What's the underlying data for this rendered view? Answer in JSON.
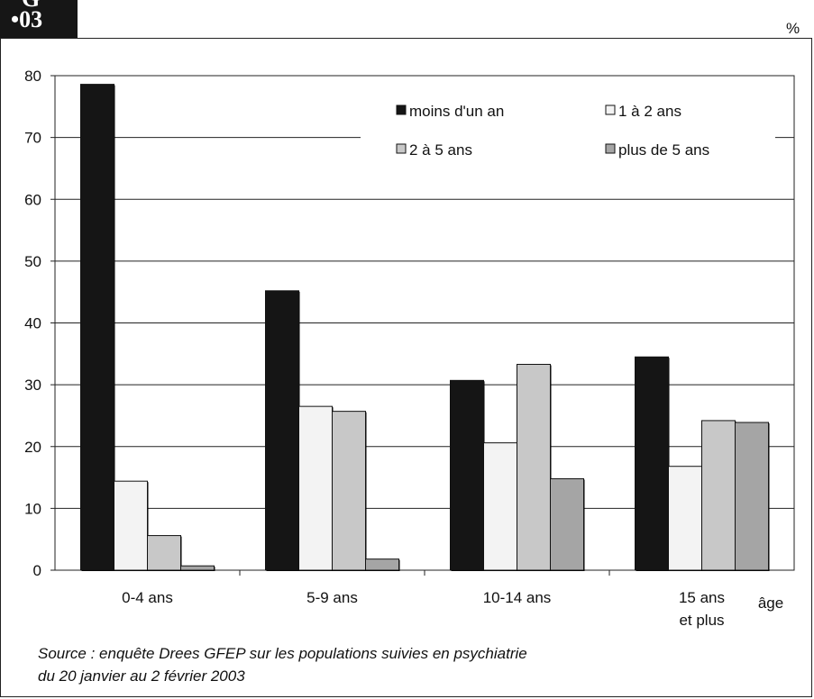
{
  "badge": {
    "letter": "G",
    "number": "•03"
  },
  "unit": "%",
  "source_lines": [
    "Source : enquête Drees GFEP sur les populations suivies en psychiatrie",
    "du 20 janvier au 2 février 2003"
  ],
  "chart_data": {
    "type": "bar",
    "categories": [
      "0-4 ans",
      "5-9 ans",
      "10-14 ans",
      "15 ans et plus"
    ],
    "category_label_lines": [
      [
        "0-4 ans"
      ],
      [
        "5-9 ans"
      ],
      [
        "10-14 ans"
      ],
      [
        "15 ans",
        "et plus"
      ]
    ],
    "series": [
      {
        "name": "moins d'un an",
        "values": [
          78.6,
          45.2,
          30.7,
          34.5
        ],
        "color": "#151515"
      },
      {
        "name": "1 à 2 ans",
        "values": [
          14.4,
          26.5,
          20.6,
          16.8
        ],
        "color": "#f3f3f3"
      },
      {
        "name": "2 à 5 ans",
        "values": [
          5.6,
          25.7,
          33.3,
          24.2
        ],
        "color": "#c8c8c8"
      },
      {
        "name": "plus de 5 ans",
        "values": [
          0.7,
          1.8,
          14.8,
          23.9
        ],
        "color": "#a5a5a5"
      }
    ],
    "xlabel": "âge",
    "ylabel": "",
    "yticks": [
      0,
      10,
      20,
      30,
      40,
      50,
      60,
      70,
      80
    ],
    "ylim": [
      0,
      80
    ],
    "grid": true,
    "legend_position": "top-right"
  }
}
